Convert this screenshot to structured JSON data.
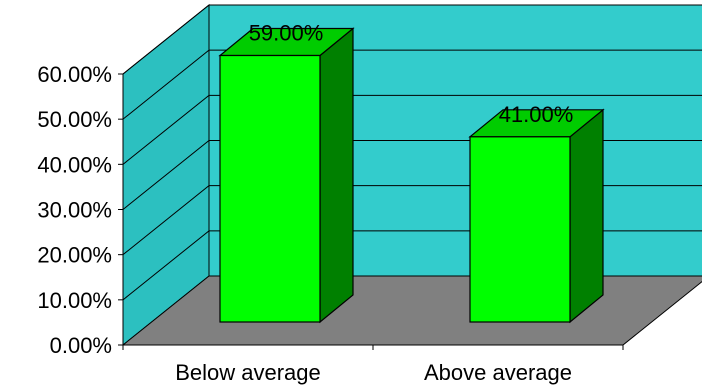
{
  "chart_data": {
    "type": "bar",
    "categories": [
      "Below average",
      "Above average"
    ],
    "values": [
      59.0,
      41.0
    ],
    "data_labels": [
      "59.00%",
      "41.00%"
    ],
    "yticks": [
      0,
      10,
      20,
      30,
      40,
      50,
      60
    ],
    "ytick_labels": [
      "0.00%",
      "10.00%",
      "20.00%",
      "30.00%",
      "40.00%",
      "50.00%",
      "60.00%"
    ],
    "ylim": [
      0,
      60
    ],
    "grid": true,
    "legend": "none",
    "style": "3d",
    "colors": {
      "wall": "#33cccc",
      "side_wall": "#2cc0c0",
      "floor": "#808080",
      "bar_front": "#00ff00",
      "bar_top": "#00cc00",
      "bar_side": "#008000",
      "outline": "#000000"
    }
  }
}
